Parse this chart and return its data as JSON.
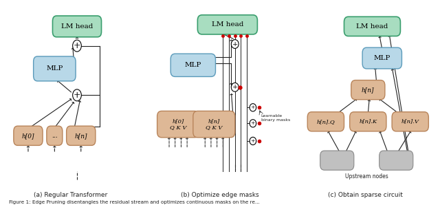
{
  "fig_width": 6.4,
  "fig_height": 2.98,
  "bg_color": "#ffffff",
  "green_edge": "#3a9e6e",
  "green_face": "#a8ddc0",
  "blue_face": "#b8d8e8",
  "blue_edge": "#5a9aba",
  "tan_face": "#deb896",
  "tan_edge": "#b8845a",
  "gray_face": "#c0c0c0",
  "gray_edge": "#888888",
  "edge_color": "#222222",
  "red_color": "#cc0000",
  "caption_a": "(a) Regular Transformer",
  "caption_b": "(b) Optimize edge masks",
  "caption_c": "(c) Obtain sparse circuit",
  "figure_caption": "Figure 1: Edge Pruning disentangles the residual stream and optimizes continuous masks on the re..."
}
